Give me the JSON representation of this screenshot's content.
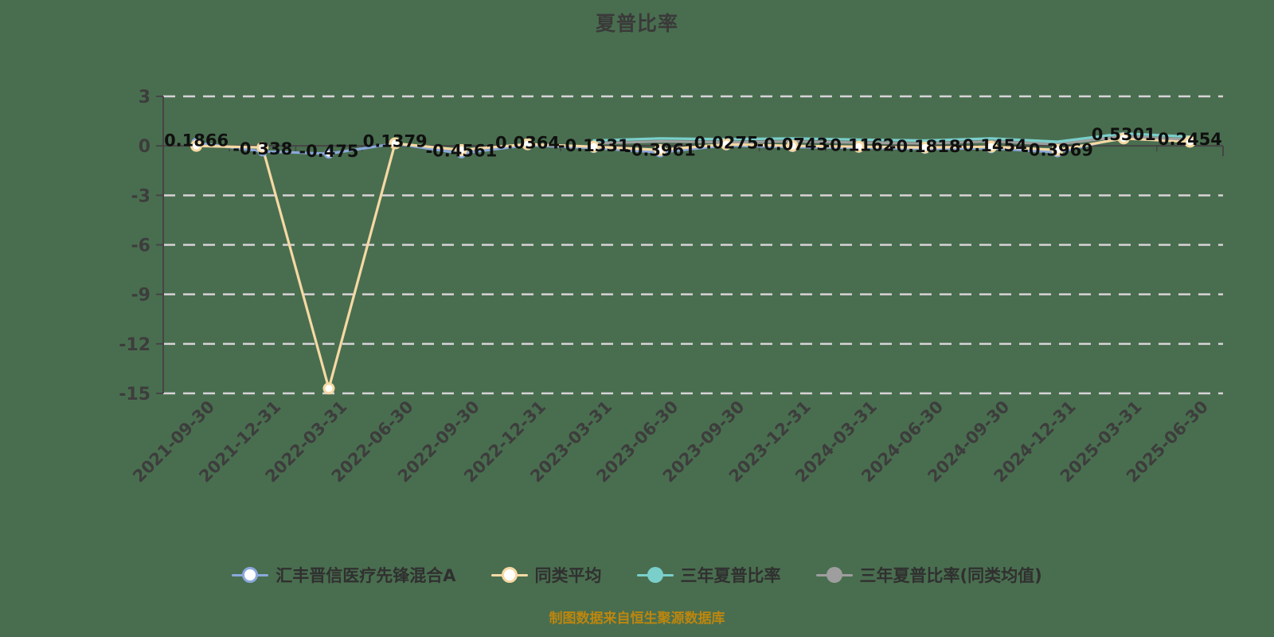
{
  "title": "夏普比率",
  "caption": {
    "text": "制图数据来自恒生聚源数据库",
    "color": "#bd860e"
  },
  "colors": {
    "background": "#496e4f",
    "grid": "#d8d3d8",
    "axis": "#454545",
    "tick_text": "#3d3d3d",
    "data_label": "#101010",
    "fund_line": "#8aa8da",
    "peer_line": "#f6d9a4",
    "three_year_line": "#7acfcb",
    "three_year_peer_line": "#9e9e9e"
  },
  "legend": {
    "items": [
      {
        "label": "汇丰晋信医疗先锋混合A",
        "color": "#8aa8da",
        "marker": "ring"
      },
      {
        "label": "同类平均",
        "color": "#f6d9a4",
        "marker": "ring"
      },
      {
        "label": "三年夏普比率",
        "color": "#7acfcb",
        "marker": "solid"
      },
      {
        "label": "三年夏普比率(同类均值)",
        "color": "#9e9e9e",
        "marker": "solid"
      }
    ]
  },
  "chart_data": {
    "type": "line",
    "title": "夏普比率",
    "categories": [
      "2021-09-30",
      "2021-12-31",
      "2022-03-31",
      "2022-06-30",
      "2022-09-30",
      "2022-12-31",
      "2023-03-31",
      "2023-06-30",
      "2023-09-30",
      "2023-12-31",
      "2024-03-31",
      "2024-06-30",
      "2024-09-30",
      "2024-12-31",
      "2025-03-31",
      "2025-06-30"
    ],
    "series": [
      {
        "name": "汇丰晋信医疗先锋混合A",
        "color": "#8aa8da",
        "marker": true,
        "values": [
          0.1866,
          -0.338,
          -0.475,
          0.1379,
          -0.4561,
          0.0364,
          -0.1331,
          -0.3961,
          0.0275,
          -0.0743,
          -0.1162,
          -0.1818,
          -0.1454,
          -0.3969,
          0.5301,
          0.2454
        ],
        "labels": [
          "0.1866",
          "-0.338",
          "-0.475",
          "0.1379",
          "-0.4561",
          "0.0364",
          "-0.1331",
          "-0.3961",
          "0.0275",
          "-0.0743",
          "-0.1162",
          "-0.1818",
          "-0.1454",
          "-0.3969",
          "0.5301",
          "0.2454"
        ]
      },
      {
        "name": "同类平均",
        "color": "#f6d9a4",
        "marker": true,
        "values": [
          0.0,
          -0.1,
          -14.7,
          0.15,
          -0.25,
          0.1,
          -0.05,
          -0.25,
          0.1,
          0.0,
          -0.05,
          -0.1,
          -0.05,
          -0.25,
          0.45,
          0.25
        ]
      },
      {
        "name": "三年夏普比率",
        "color": "#7acfcb",
        "marker": false,
        "values": [
          null,
          null,
          null,
          null,
          null,
          null,
          0.32,
          0.45,
          0.4,
          0.45,
          0.38,
          0.32,
          0.45,
          0.25,
          0.75,
          0.55
        ]
      },
      {
        "name": "三年夏普比率(同类均值)",
        "color": "#9e9e9e",
        "marker": false,
        "values": [
          null,
          null,
          null,
          null,
          null,
          null,
          0.15,
          0.27,
          0.22,
          0.27,
          0.2,
          0.15,
          0.27,
          0.1,
          0.58,
          0.38
        ]
      }
    ],
    "ylim": [
      -15,
      3
    ],
    "yticks": [
      3,
      0,
      -3,
      -6,
      -9,
      -12,
      -15
    ],
    "grid": "dashed-horizontal",
    "x_label_rotation": 45,
    "legend_position": "bottom"
  }
}
